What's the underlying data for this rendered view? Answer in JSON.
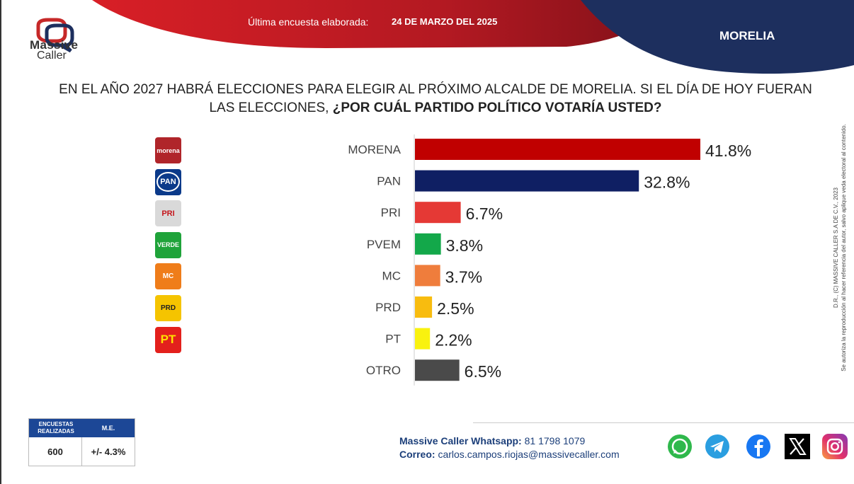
{
  "brand": {
    "line1": "Massive",
    "line2": "Caller"
  },
  "header": {
    "survey_label": "Última encuesta elaborada:",
    "survey_date": "24 DE MARZO DEL 2025",
    "city": "MORELIA"
  },
  "question": {
    "line1": "EN EL AÑO 2027 HABRÁ ELECCIONES PARA ELEGIR AL PRÓXIMO ALCALDE DE MORELIA. SI EL DÍA DE HOY FUERAN",
    "line2_plain": "LAS ELECCIONES, ",
    "line2_bold": "¿POR CUÁL PARTIDO POLÍTICO VOTARÍA USTED?"
  },
  "side_note": {
    "line1": "D.R., (C) MASSIVE CALLER S.A DE C.V., 2023",
    "line2": "Se autoriza la reproducción al hacer referencia del autor, salvo aplique veda electoral al contenido."
  },
  "party_logos": [
    {
      "name": "morena",
      "text": "morena",
      "color": "#b0252a"
    },
    {
      "name": "pan",
      "text": "PAN",
      "color": "#0b3a8a"
    },
    {
      "name": "pri",
      "text": "PRI",
      "color": "#d9d9d9"
    },
    {
      "name": "verde",
      "text": "VERDE",
      "color": "#1fa33a"
    },
    {
      "name": "mc",
      "text": "MC",
      "color": "#ef7d1a"
    },
    {
      "name": "prd",
      "text": "PRD",
      "color": "#f5c400"
    },
    {
      "name": "pt",
      "text": "PT",
      "color": "#e3201c"
    }
  ],
  "chart_data": {
    "type": "bar",
    "orientation": "horizontal",
    "categories": [
      "MORENA",
      "PAN",
      "PRI",
      "PVEM",
      "MC",
      "PRD",
      "PT",
      "OTRO"
    ],
    "values": [
      41.8,
      32.8,
      6.7,
      3.8,
      3.7,
      2.5,
      2.2,
      6.5
    ],
    "value_labels": [
      "41.8%",
      "32.8%",
      "6.7%",
      "3.8%",
      "3.7%",
      "2.5%",
      "2.2%",
      "6.5%"
    ],
    "colors": [
      "#c00000",
      "#0f1f63",
      "#e53935",
      "#13a84a",
      "#ef7d3c",
      "#f8bc0f",
      "#f9f20f",
      "#4a4a4a"
    ],
    "unit": "%",
    "grid": false,
    "legend": "none"
  },
  "stats": {
    "surveys_label": "ENCUESTAS REALIZADAS",
    "surveys_value": "600",
    "me_label": "M.E.",
    "me_value": "+/- 4.3%"
  },
  "contact": {
    "whatsapp_label": "Massive Caller Whatsapp:",
    "whatsapp_value": "81 1798 1079",
    "email_label": "Correo:",
    "email_value": "carlos.campos.riojas@massivecaller.com"
  },
  "social_icons": [
    "whatsapp-icon",
    "telegram-icon",
    "facebook-icon",
    "x-icon",
    "instagram-icon"
  ]
}
